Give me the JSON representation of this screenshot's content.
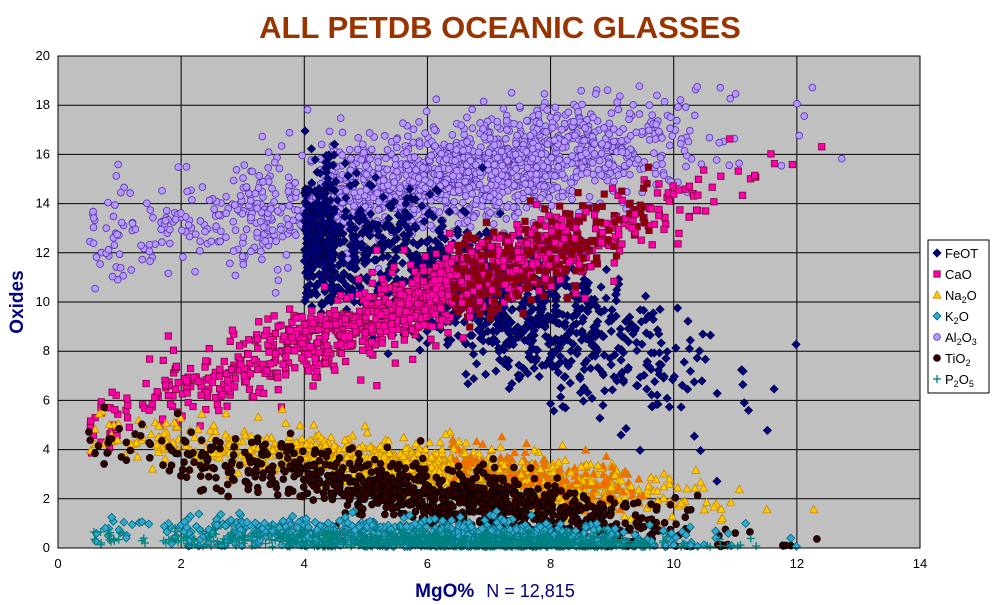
{
  "colors": {
    "title": "#993300",
    "axis_title": "#000080",
    "plot_bg": "#c0c0c0",
    "grid": "#000000"
  },
  "chart_data": {
    "type": "scatter",
    "title": "ALL PETDB OCEANIC GLASSES",
    "xlabel": "MgO%",
    "xlabel_note": "N = 12,815",
    "ylabel": "Oxides",
    "xlim": [
      0,
      14
    ],
    "ylim": [
      0,
      20
    ],
    "x_ticks": [
      "0",
      "2",
      "4",
      "6",
      "8",
      "10",
      "12",
      "14"
    ],
    "y_ticks": [
      "0",
      "2",
      "4",
      "6",
      "8",
      "10",
      "12",
      "14",
      "16",
      "18",
      "20"
    ],
    "grid": true,
    "legend_position": "right",
    "series": [
      {
        "name": "FeOT",
        "label_parts": [
          [
            "FeOT",
            ""
          ]
        ],
        "marker": "diamond",
        "fill": "#000080",
        "stroke": "#000040",
        "cloud": {
          "intercept": 16.5,
          "slope": -0.9,
          "spread": 1.4,
          "min": 4,
          "max": 12,
          "count": 1400
        }
      },
      {
        "name": "CaO",
        "label_parts": [
          [
            "CaO",
            ""
          ]
        ],
        "marker": "square",
        "fill": "#ff00aa",
        "stroke": "#800040",
        "core": "#8b0000",
        "cloud": {
          "intercept": 4.5,
          "slope": 0.95,
          "spread": 0.8,
          "min": 0.5,
          "max": 12.8,
          "count": 1400
        }
      },
      {
        "name": "Na2O",
        "label_parts": [
          [
            "Na",
            ""
          ],
          [
            "2",
            "sub"
          ],
          [
            "O",
            ""
          ]
        ],
        "marker": "triangle",
        "fill": "#ffcc00",
        "stroke": "#cc8800",
        "core": "#ff6600",
        "cloud": {
          "intercept": 4.8,
          "slope": -0.26,
          "spread": 0.5,
          "min": 0.5,
          "max": 12.8,
          "count": 1200
        }
      },
      {
        "name": "K2O",
        "label_parts": [
          [
            "K",
            ""
          ],
          [
            "2",
            "sub"
          ],
          [
            "O",
            ""
          ]
        ],
        "marker": "diamond",
        "fill": "#33a9cc",
        "stroke": "#006680",
        "cloud": {
          "intercept": 0.9,
          "slope": -0.07,
          "spread": 0.35,
          "min": 0.5,
          "max": 12.8,
          "count": 900
        }
      },
      {
        "name": "Al2O3",
        "label_parts": [
          [
            "Al",
            ""
          ],
          [
            "2",
            "sub"
          ],
          [
            "O",
            ""
          ],
          [
            "3",
            "sub"
          ]
        ],
        "marker": "circle",
        "fill": "#b899ff",
        "stroke": "#5533aa",
        "cloud": {
          "intercept": 12.2,
          "slope": 0.45,
          "spread": 1.1,
          "min": 0.5,
          "max": 12.8,
          "count": 1600
        }
      },
      {
        "name": "TiO2",
        "label_parts": [
          [
            "TiO",
            ""
          ],
          [
            "2",
            "sub"
          ]
        ],
        "marker": "circle",
        "fill": "#330000",
        "stroke": "#000000",
        "cloud": {
          "intercept": 4.6,
          "slope": -0.4,
          "spread": 0.6,
          "min": 0.5,
          "max": 12.8,
          "count": 1000
        }
      },
      {
        "name": "P2O5",
        "label_parts": [
          [
            "P",
            ""
          ],
          [
            "2",
            "sub"
          ],
          [
            "O",
            ""
          ],
          [
            "5",
            "sub"
          ]
        ],
        "marker": "plus",
        "fill": "#008080",
        "stroke": "#008080",
        "cloud": {
          "intercept": 0.45,
          "slope": -0.03,
          "spread": 0.2,
          "min": 0.5,
          "max": 12.8,
          "count": 700
        }
      }
    ]
  }
}
